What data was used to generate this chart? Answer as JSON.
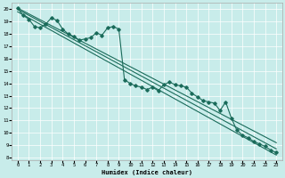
{
  "xlabel": "Humidex (Indice chaleur)",
  "bg_color": "#c8ecea",
  "line_color": "#1a6b5a",
  "xlim": [
    -0.5,
    23.5
  ],
  "ylim": [
    7.8,
    20.5
  ],
  "yticks": [
    8,
    9,
    10,
    11,
    12,
    13,
    14,
    15,
    16,
    17,
    18,
    19,
    20
  ],
  "xticks": [
    0,
    1,
    2,
    3,
    4,
    5,
    6,
    7,
    8,
    9,
    10,
    11,
    12,
    13,
    14,
    15,
    16,
    17,
    18,
    19,
    20,
    21,
    22,
    23
  ],
  "zigzag_x": [
    0,
    0.5,
    1,
    1.5,
    2,
    2.5,
    3,
    3.5,
    4,
    4.5,
    5,
    5.5,
    6,
    6.5,
    7,
    7.5,
    8,
    8.5,
    9,
    9.5,
    10,
    10.5,
    11,
    11.5,
    12,
    12.5,
    13,
    13.5,
    14,
    14.5,
    15,
    15.5,
    16,
    16.5,
    17,
    17.5,
    18,
    18.5,
    19,
    19.5,
    20,
    20.5,
    21,
    21.5,
    22,
    22.5,
    23
  ],
  "zigzag_y": [
    20.1,
    19.5,
    19.2,
    18.6,
    18.5,
    18.8,
    19.3,
    19.1,
    18.4,
    18.0,
    17.8,
    17.5,
    17.6,
    17.7,
    18.1,
    17.9,
    18.5,
    18.6,
    18.4,
    14.3,
    14.0,
    13.8,
    13.7,
    13.5,
    13.7,
    13.4,
    13.9,
    14.1,
    13.9,
    13.8,
    13.7,
    13.2,
    12.9,
    12.6,
    12.5,
    12.4,
    11.8,
    12.5,
    11.2,
    10.2,
    9.8,
    9.6,
    9.3,
    9.1,
    8.9,
    8.6,
    8.4
  ],
  "reg_lines": [
    {
      "x": [
        0,
        23
      ],
      "y": [
        20.1,
        9.2
      ]
    },
    {
      "x": [
        0,
        23
      ],
      "y": [
        20.0,
        8.7
      ]
    },
    {
      "x": [
        0,
        23
      ],
      "y": [
        19.8,
        8.2
      ]
    }
  ]
}
